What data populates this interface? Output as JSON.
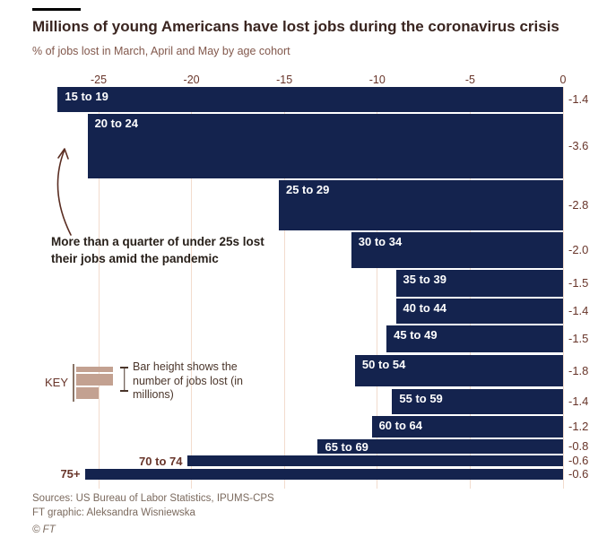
{
  "header": {
    "title": "Millions of young Americans have lost jobs during the coronavirus crisis",
    "subtitle": "% of jobs lost in March, April and May by age cohort"
  },
  "chart_data": {
    "type": "bar",
    "variant": "horizontal variable-height bars (marimekko-style); bar length = % of jobs lost, bar height = jobs lost in millions",
    "title": "Millions of young Americans have lost jobs during the coronavirus crisis",
    "xlabel": "% of jobs lost in March, April and May by age cohort",
    "x_axis": {
      "ticks": [
        -25,
        -20,
        -15,
        -10,
        -5,
        0
      ],
      "range": [
        -27.5,
        0
      ],
      "position": "top",
      "unit": "%"
    },
    "grid": true,
    "bars": [
      {
        "cohort": "15 to 19",
        "pct_jobs_lost": -27.2,
        "jobs_lost_millions": -1.4,
        "value_label": "-1.4",
        "label_inside": true
      },
      {
        "cohort": "20 to 24",
        "pct_jobs_lost": -25.6,
        "jobs_lost_millions": -3.6,
        "value_label": "-3.6",
        "label_inside": true
      },
      {
        "cohort": "25 to 29",
        "pct_jobs_lost": -15.3,
        "jobs_lost_millions": -2.8,
        "value_label": "-2.8",
        "label_inside": true
      },
      {
        "cohort": "30 to 34",
        "pct_jobs_lost": -11.4,
        "jobs_lost_millions": -2.0,
        "value_label": "-2.0",
        "label_inside": true
      },
      {
        "cohort": "35 to 39",
        "pct_jobs_lost": -9.0,
        "jobs_lost_millions": -1.5,
        "value_label": "-1.5",
        "label_inside": true
      },
      {
        "cohort": "40 to 44",
        "pct_jobs_lost": -9.0,
        "jobs_lost_millions": -1.4,
        "value_label": "-1.4",
        "label_inside": true
      },
      {
        "cohort": "45 to 49",
        "pct_jobs_lost": -9.5,
        "jobs_lost_millions": -1.5,
        "value_label": "-1.5",
        "label_inside": true
      },
      {
        "cohort": "50 to 54",
        "pct_jobs_lost": -11.2,
        "jobs_lost_millions": -1.8,
        "value_label": "-1.8",
        "label_inside": true
      },
      {
        "cohort": "55 to 59",
        "pct_jobs_lost": -9.2,
        "jobs_lost_millions": -1.4,
        "value_label": "-1.4",
        "label_inside": true
      },
      {
        "cohort": "60 to 64",
        "pct_jobs_lost": -10.3,
        "jobs_lost_millions": -1.2,
        "value_label": "-1.2",
        "label_inside": true
      },
      {
        "cohort": "65 to 69",
        "pct_jobs_lost": -13.2,
        "jobs_lost_millions": -0.8,
        "value_label": "-0.8",
        "label_inside": true
      },
      {
        "cohort": "70 to 74",
        "pct_jobs_lost": -20.2,
        "jobs_lost_millions": -0.6,
        "value_label": "-0.6",
        "label_inside": false
      },
      {
        "cohort": "75+",
        "pct_jobs_lost": -25.7,
        "jobs_lost_millions": -0.6,
        "value_label": "-0.6",
        "label_inside": false
      }
    ],
    "legend_position": "left middle (KEY block)"
  },
  "annotation": {
    "text": "More than a quarter of under 25s lost their jobs amid the pandemic"
  },
  "key": {
    "label": "KEY",
    "description": "Bar height shows the number of jobs lost (in millions)"
  },
  "footer": {
    "sources": "Sources: US Bureau of Labor Statistics, IPUMS-CPS",
    "credit": "FT graphic: Aleksandra Wisniewska",
    "copyright": "© FT"
  },
  "colors": {
    "bar": "#14234e",
    "axis_text": "#68352a",
    "title_text": "#3a2520",
    "subtitle_text": "#82584c",
    "key_swatch": "#c3a191",
    "gridline": "#f2dccd",
    "top_rule": "#000000"
  }
}
